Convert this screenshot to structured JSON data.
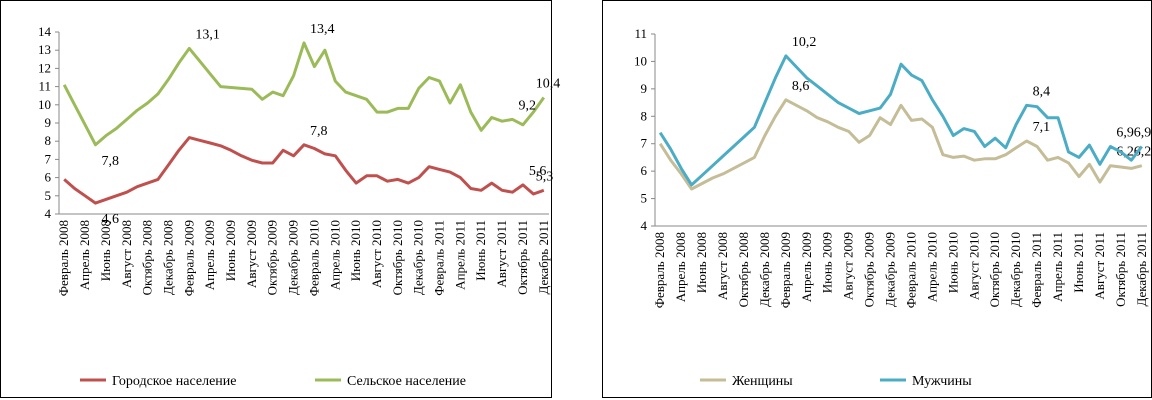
{
  "chart_data": [
    {
      "type": "line",
      "categories": [
        "Февраль 2008",
        null,
        "Апрель 2008",
        null,
        "Июнь 2008",
        null,
        "Август 2008",
        null,
        "Октябрь 2008",
        null,
        "Декабрь 2008",
        null,
        "Февраль 2009",
        null,
        "Апрель 2009",
        null,
        "Июнь 2009",
        null,
        "Август 2009",
        null,
        "Октябрь 2009",
        null,
        "Декабрь 2009",
        null,
        "Февраль 2010",
        null,
        "Апрель 2010",
        null,
        "Июнь 2010",
        null,
        "Август 2010",
        null,
        "Октябрь 2010",
        null,
        "Декабрь 2010",
        null,
        "Февраль 2011",
        null,
        "Апрель 2011",
        null,
        "Июнь 2011",
        null,
        "Август 2011",
        null,
        "Октябрь 2011",
        null,
        "Декабрь 2011"
      ],
      "series": [
        {
          "name": "Городское население",
          "color": "#c0504d",
          "values": [
            5.9,
            5.4,
            5.0,
            4.6,
            4.8,
            5.0,
            5.2,
            5.5,
            5.7,
            5.9,
            6.7,
            7.5,
            8.2,
            8.05,
            7.9,
            7.75,
            7.5,
            7.2,
            6.95,
            6.8,
            6.8,
            7.5,
            7.2,
            7.8,
            7.6,
            7.3,
            7.2,
            6.4,
            5.7,
            6.1,
            6.1,
            5.8,
            5.9,
            5.7,
            6.0,
            6.6,
            6.45,
            6.3,
            6.0,
            5.4,
            5.3,
            5.7,
            5.3,
            5.2,
            5.6,
            5.1,
            5.3
          ],
          "value_labels": [
            null,
            null,
            null,
            "4,6",
            null,
            null,
            null,
            null,
            null,
            null,
            null,
            null,
            null,
            null,
            null,
            null,
            null,
            null,
            null,
            null,
            null,
            null,
            null,
            "7,8",
            null,
            null,
            null,
            null,
            null,
            null,
            null,
            null,
            null,
            null,
            null,
            null,
            null,
            null,
            null,
            null,
            null,
            null,
            null,
            null,
            "5,6",
            null,
            "5,3"
          ]
        },
        {
          "name": "Сельское население",
          "color": "#9bbb59",
          "values": [
            11.1,
            10.0,
            8.9,
            7.8,
            8.3,
            8.7,
            9.2,
            9.7,
            10.1,
            10.6,
            11.4,
            12.3,
            13.1,
            12.4,
            11.7,
            11.0,
            10.95,
            10.9,
            10.85,
            10.3,
            10.7,
            10.5,
            11.6,
            13.4,
            12.1,
            13.0,
            11.3,
            10.7,
            10.5,
            10.3,
            9.6,
            9.6,
            9.8,
            9.8,
            10.9,
            11.5,
            11.3,
            10.1,
            11.1,
            9.6,
            8.6,
            9.3,
            9.1,
            9.2,
            8.9,
            9.6,
            10.4
          ],
          "value_labels": [
            null,
            null,
            null,
            "7,8",
            null,
            null,
            null,
            null,
            null,
            null,
            null,
            null,
            "13,1",
            null,
            null,
            null,
            null,
            null,
            null,
            null,
            null,
            null,
            null,
            "13,4",
            null,
            null,
            null,
            null,
            null,
            null,
            null,
            null,
            null,
            null,
            null,
            null,
            null,
            null,
            null,
            null,
            null,
            null,
            null,
            "9,2",
            null,
            null,
            "10,4"
          ]
        }
      ],
      "ylim": [
        4,
        14
      ],
      "yticks": [
        4,
        5,
        6,
        7,
        8,
        9,
        10,
        11,
        12,
        13,
        14
      ],
      "legend": "bottom"
    },
    {
      "type": "line",
      "categories": [
        "Февраль 2008",
        null,
        "Апрель 2008",
        null,
        "Июнь 2008",
        null,
        "Август 2008",
        null,
        "Октябрь 2008",
        null,
        "Декабрь 2008",
        null,
        "Февраль 2009",
        null,
        "Апрель 2009",
        null,
        "Июнь 2009",
        null,
        "Август 2009",
        null,
        "Октябрь 2009",
        null,
        "Декабрь 2009",
        null,
        "Февраль 2010",
        null,
        "Апрель 2010",
        null,
        "Июнь 2010",
        null,
        "Август 2010",
        null,
        "Октябрь 2010",
        null,
        "Декабрь 2010",
        null,
        "Февраль 2011",
        null,
        "Апрель 2011",
        null,
        "Июнь 2011",
        null,
        "Август 2011",
        null,
        "Октябрь 2011",
        null,
        "Декабрь 2011"
      ],
      "series": [
        {
          "name": "Женщины",
          "color": "#c4bd97",
          "values": [
            7.0,
            6.4,
            5.9,
            5.35,
            5.55,
            5.75,
            5.9,
            6.1,
            6.3,
            6.5,
            7.3,
            8.0,
            8.6,
            8.4,
            8.2,
            7.95,
            7.8,
            7.6,
            7.45,
            7.05,
            7.3,
            7.95,
            7.7,
            8.4,
            7.85,
            7.9,
            7.6,
            6.6,
            6.5,
            6.55,
            6.4,
            6.45,
            6.45,
            6.6,
            6.85,
            7.1,
            6.9,
            6.4,
            6.5,
            6.3,
            5.8,
            6.25,
            5.6,
            6.2,
            6.15,
            6.1,
            6.2
          ],
          "value_labels": [
            null,
            null,
            null,
            null,
            null,
            null,
            null,
            null,
            null,
            null,
            null,
            null,
            "8,6",
            null,
            null,
            null,
            null,
            null,
            null,
            null,
            null,
            null,
            null,
            null,
            null,
            null,
            null,
            null,
            null,
            null,
            null,
            null,
            null,
            null,
            null,
            "7,1",
            null,
            null,
            null,
            null,
            null,
            null,
            null,
            "6,2",
            null,
            null,
            "6,2"
          ]
        },
        {
          "name": "Мужчины",
          "color": "#4bacc6",
          "values": [
            7.4,
            6.8,
            6.1,
            5.5,
            5.85,
            6.2,
            6.55,
            6.9,
            7.25,
            7.6,
            8.5,
            9.4,
            10.2,
            9.8,
            9.4,
            9.1,
            8.8,
            8.5,
            8.3,
            8.1,
            8.2,
            8.3,
            8.8,
            9.9,
            9.5,
            9.3,
            8.6,
            8.0,
            7.3,
            7.55,
            7.45,
            6.9,
            7.2,
            6.85,
            7.7,
            8.4,
            8.35,
            7.95,
            7.95,
            6.7,
            6.5,
            6.95,
            6.25,
            6.9,
            6.7,
            6.4,
            6.9
          ],
          "value_labels": [
            null,
            null,
            null,
            null,
            null,
            null,
            null,
            null,
            null,
            null,
            null,
            null,
            "10,2",
            null,
            null,
            null,
            null,
            null,
            null,
            null,
            null,
            null,
            null,
            null,
            null,
            null,
            null,
            null,
            null,
            null,
            null,
            null,
            null,
            null,
            null,
            "8,4",
            null,
            null,
            null,
            null,
            null,
            null,
            null,
            "6,9",
            null,
            null,
            "6,9"
          ]
        }
      ],
      "ylim": [
        4,
        11
      ],
      "yticks": [
        4,
        5,
        6,
        7,
        8,
        9,
        10,
        11
      ],
      "legend": "bottom"
    }
  ]
}
